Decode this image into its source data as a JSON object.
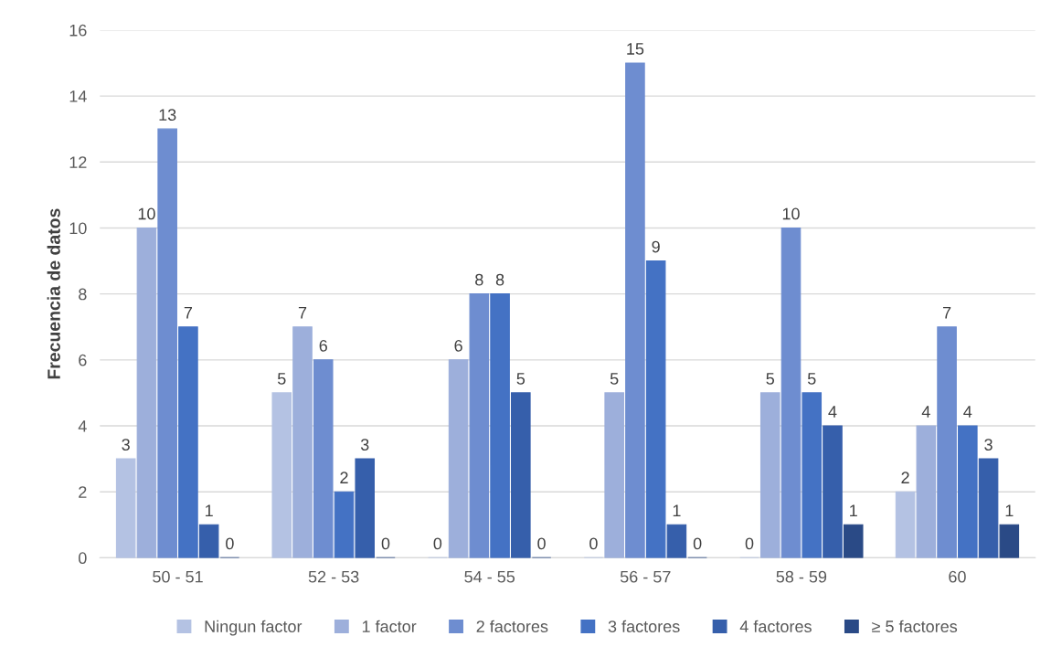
{
  "chart_data": {
    "type": "bar",
    "ylabel": "Frecuencia de datos",
    "categories": [
      "50 - 51",
      "52 - 53",
      "54 - 55",
      "56 - 57",
      "58 - 59",
      "60"
    ],
    "series": [
      {
        "name": "Ningun factor",
        "color": "#b4c2e3",
        "values": [
          3,
          5,
          0,
          0,
          0,
          2
        ]
      },
      {
        "name": "1 factor",
        "color": "#9dafdb",
        "values": [
          10,
          7,
          6,
          5,
          5,
          4
        ]
      },
      {
        "name": "2 factores",
        "color": "#6e8dd0",
        "values": [
          13,
          6,
          8,
          15,
          10,
          7
        ]
      },
      {
        "name": "3 factores",
        "color": "#4472c4",
        "values": [
          7,
          2,
          8,
          9,
          5,
          4
        ]
      },
      {
        "name": "4 factores",
        "color": "#365fab",
        "values": [
          1,
          3,
          5,
          1,
          4,
          3
        ]
      },
      {
        "name": "≥ 5 factores",
        "color": "#2a4a86",
        "values": [
          0,
          0,
          0,
          0,
          1,
          1
        ]
      }
    ],
    "ylim": [
      0,
      16
    ],
    "yticks": [
      0,
      2,
      4,
      6,
      8,
      10,
      12,
      14,
      16
    ],
    "grid": "y",
    "legend": "bottom",
    "data_labels": true
  }
}
